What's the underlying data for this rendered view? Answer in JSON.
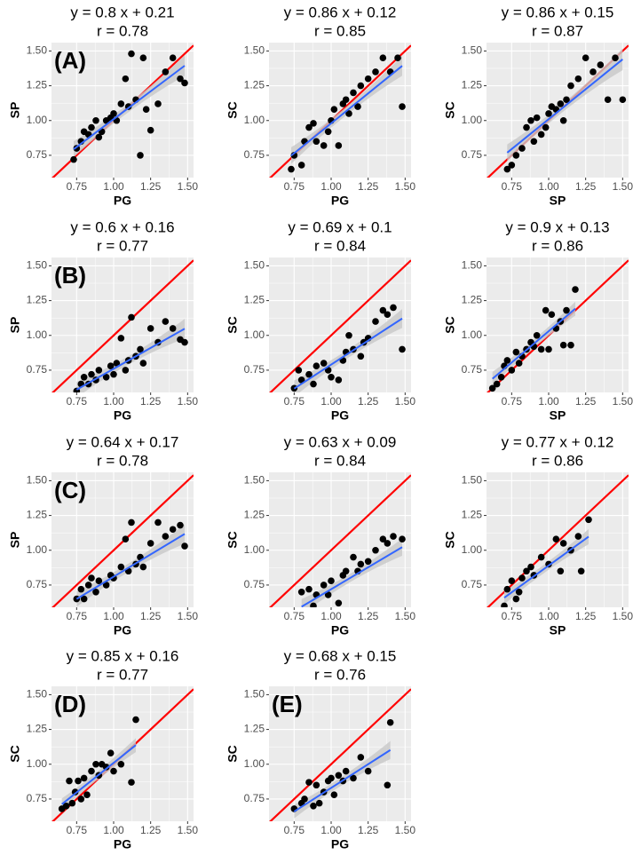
{
  "chart_data": [
    {
      "type": "scatter",
      "title": "y =  0.8 x + 0.21",
      "subtitle": "r = 0.78",
      "label": "(A)",
      "x_label": "PG",
      "y_label": "SP",
      "point_color": "#000000",
      "identity_color": "#ff0000",
      "band_color": "#c8c8c8",
      "fit": {
        "slope": 0.8,
        "intercept": 0.21,
        "color": "#3366ff"
      },
      "xlim": [
        0.58,
        1.54
      ],
      "ylim": [
        0.59,
        1.56
      ],
      "xticks": [
        0.75,
        {
          "value": 1,
          "label": "1.00"
        },
        1.25,
        {
          "value": 1.5,
          "label": "1.50"
        }
      ],
      "yticks": [
        0.75,
        {
          "value": 1,
          "label": "1.00"
        },
        1.25,
        {
          "value": 1.5,
          "label": "1.50"
        }
      ],
      "grid": true,
      "x": [
        0.73,
        0.75,
        0.78,
        0.8,
        0.83,
        0.85,
        0.88,
        0.9,
        0.92,
        0.95,
        0.98,
        1.0,
        1.02,
        1.05,
        1.08,
        1.1,
        1.12,
        1.15,
        1.18,
        1.2,
        1.22,
        1.25,
        1.3,
        1.35,
        1.4,
        1.45,
        1.48
      ],
      "y": [
        0.72,
        0.8,
        0.85,
        0.92,
        0.9,
        0.95,
        1.0,
        0.88,
        0.92,
        1.0,
        1.02,
        1.05,
        1.0,
        1.12,
        1.3,
        1.1,
        1.48,
        1.15,
        0.75,
        1.45,
        1.08,
        0.93,
        1.12,
        1.35,
        1.45,
        1.3,
        1.27
      ]
    },
    {
      "type": "scatter",
      "title": "y =  0.86 x + 0.12",
      "subtitle": "r = 0.85",
      "x_label": "PG",
      "y_label": "SC",
      "point_color": "#000000",
      "identity_color": "#ff0000",
      "band_color": "#c8c8c8",
      "fit": {
        "slope": 0.86,
        "intercept": 0.12,
        "color": "#3366ff"
      },
      "xlim": [
        0.58,
        1.54
      ],
      "ylim": [
        0.59,
        1.56
      ],
      "xticks": [
        0.75,
        {
          "value": 1,
          "label": "1.00"
        },
        1.25,
        {
          "value": 1.5,
          "label": "1.50"
        }
      ],
      "yticks": [
        0.75,
        {
          "value": 1,
          "label": "1.00"
        },
        1.25,
        {
          "value": 1.5,
          "label": "1.50"
        }
      ],
      "grid": true,
      "x": [
        0.73,
        0.75,
        0.8,
        0.82,
        0.85,
        0.88,
        0.9,
        0.95,
        0.98,
        1.0,
        1.02,
        1.05,
        1.08,
        1.1,
        1.12,
        1.15,
        1.18,
        1.2,
        1.25,
        1.3,
        1.35,
        1.4,
        1.45,
        1.48
      ],
      "y": [
        0.65,
        0.75,
        0.68,
        0.85,
        0.95,
        0.98,
        0.85,
        0.82,
        0.92,
        1.0,
        1.08,
        0.82,
        1.12,
        1.15,
        1.05,
        1.2,
        1.1,
        1.25,
        1.3,
        1.35,
        1.45,
        1.35,
        1.45,
        1.1
      ]
    },
    {
      "type": "scatter",
      "title": "y =  0.86 x + 0.15",
      "subtitle": "r = 0.87",
      "x_label": "SP",
      "y_label": "SC",
      "point_color": "#000000",
      "identity_color": "#ff0000",
      "band_color": "#c8c8c8",
      "fit": {
        "slope": 0.86,
        "intercept": 0.15,
        "color": "#3366ff"
      },
      "xlim": [
        0.58,
        1.54
      ],
      "ylim": [
        0.59,
        1.56
      ],
      "xticks": [
        0.75,
        {
          "value": 1,
          "label": "1.00"
        },
        1.25,
        {
          "value": 1.5,
          "label": "1.50"
        }
      ],
      "yticks": [
        0.75,
        {
          "value": 1,
          "label": "1.00"
        },
        1.25,
        {
          "value": 1.5,
          "label": "1.50"
        }
      ],
      "grid": true,
      "x": [
        0.72,
        0.75,
        0.78,
        0.82,
        0.85,
        0.88,
        0.9,
        0.92,
        0.95,
        0.98,
        1.0,
        1.02,
        1.05,
        1.08,
        1.1,
        1.12,
        1.15,
        1.2,
        1.25,
        1.3,
        1.35,
        1.4,
        1.45,
        1.5
      ],
      "y": [
        0.65,
        0.68,
        0.75,
        0.8,
        0.95,
        1.0,
        0.85,
        1.02,
        0.9,
        0.95,
        1.05,
        1.1,
        1.08,
        1.12,
        1.0,
        1.15,
        1.25,
        1.3,
        1.45,
        1.35,
        1.4,
        1.15,
        1.45,
        1.15
      ]
    },
    {
      "type": "scatter",
      "title": "y =  0.6 x + 0.16",
      "subtitle": "r = 0.77",
      "label": "(B)",
      "x_label": "PG",
      "y_label": "SP",
      "point_color": "#000000",
      "identity_color": "#ff0000",
      "band_color": "#c8c8c8",
      "fit": {
        "slope": 0.6,
        "intercept": 0.16,
        "color": "#3366ff"
      },
      "xlim": [
        0.58,
        1.54
      ],
      "ylim": [
        0.59,
        1.56
      ],
      "xticks": [
        0.75,
        {
          "value": 1,
          "label": "1.00"
        },
        1.25,
        {
          "value": 1.5,
          "label": "1.50"
        }
      ],
      "yticks": [
        0.75,
        {
          "value": 1,
          "label": "1.00"
        },
        1.25,
        {
          "value": 1.5,
          "label": "1.50"
        }
      ],
      "grid": true,
      "x": [
        0.75,
        0.78,
        0.8,
        0.83,
        0.85,
        0.88,
        0.9,
        0.95,
        0.98,
        1.0,
        1.02,
        1.05,
        1.08,
        1.1,
        1.12,
        1.15,
        1.18,
        1.2,
        1.25,
        1.3,
        1.35,
        1.4,
        1.45,
        1.48
      ],
      "y": [
        0.6,
        0.65,
        0.7,
        0.65,
        0.72,
        0.68,
        0.75,
        0.7,
        0.78,
        0.72,
        0.8,
        0.98,
        0.75,
        0.82,
        1.13,
        0.85,
        0.9,
        0.8,
        1.05,
        0.95,
        1.1,
        1.05,
        0.97,
        0.95
      ]
    },
    {
      "type": "scatter",
      "title": "y =  0.69 x + 0.1",
      "subtitle": "r = 0.84",
      "x_label": "PG",
      "y_label": "SC",
      "point_color": "#000000",
      "identity_color": "#ff0000",
      "band_color": "#c8c8c8",
      "fit": {
        "slope": 0.69,
        "intercept": 0.1,
        "color": "#3366ff"
      },
      "xlim": [
        0.58,
        1.54
      ],
      "ylim": [
        0.59,
        1.56
      ],
      "xticks": [
        0.75,
        {
          "value": 1,
          "label": "1.00"
        },
        1.25,
        {
          "value": 1.5,
          "label": "1.50"
        }
      ],
      "yticks": [
        0.75,
        {
          "value": 1,
          "label": "1.00"
        },
        1.25,
        {
          "value": 1.5,
          "label": "1.50"
        }
      ],
      "grid": true,
      "x": [
        0.75,
        0.78,
        0.8,
        0.85,
        0.88,
        0.9,
        0.95,
        0.98,
        1.0,
        1.05,
        1.08,
        1.1,
        1.12,
        1.15,
        1.2,
        1.22,
        1.25,
        1.3,
        1.35,
        1.38,
        1.42,
        1.48
      ],
      "y": [
        0.62,
        0.75,
        0.68,
        0.72,
        0.65,
        0.78,
        0.8,
        0.75,
        0.7,
        0.68,
        0.82,
        0.88,
        1.0,
        0.9,
        0.85,
        0.95,
        0.98,
        1.1,
        1.18,
        1.15,
        1.2,
        0.9
      ]
    },
    {
      "type": "scatter",
      "title": "y =  0.9 x + 0.13",
      "subtitle": "r = 0.86",
      "x_label": "SP",
      "y_label": "SC",
      "point_color": "#000000",
      "identity_color": "#ff0000",
      "band_color": "#c8c8c8",
      "fit": {
        "slope": 0.9,
        "intercept": 0.13,
        "color": "#3366ff"
      },
      "xlim": [
        0.58,
        1.54
      ],
      "ylim": [
        0.59,
        1.56
      ],
      "xticks": [
        0.75,
        {
          "value": 1,
          "label": "1.00"
        },
        1.25,
        {
          "value": 1.5,
          "label": "1.50"
        }
      ],
      "yticks": [
        0.75,
        {
          "value": 1,
          "label": "1.00"
        },
        1.25,
        {
          "value": 1.5,
          "label": "1.50"
        }
      ],
      "grid": true,
      "x": [
        0.62,
        0.65,
        0.68,
        0.7,
        0.72,
        0.75,
        0.78,
        0.8,
        0.82,
        0.85,
        0.88,
        0.9,
        0.92,
        0.95,
        0.98,
        1.0,
        1.02,
        1.05,
        1.08,
        1.1,
        1.12,
        1.15,
        1.18
      ],
      "y": [
        0.62,
        0.65,
        0.7,
        0.78,
        0.82,
        0.75,
        0.88,
        0.8,
        0.85,
        0.9,
        0.95,
        0.92,
        1.0,
        0.9,
        1.18,
        0.9,
        1.15,
        1.05,
        1.1,
        0.93,
        1.18,
        0.93,
        1.33
      ]
    },
    {
      "type": "scatter",
      "title": "y =  0.64 x + 0.17",
      "subtitle": "r = 0.78",
      "label": "(C)",
      "x_label": "PG",
      "y_label": "SP",
      "point_color": "#000000",
      "identity_color": "#ff0000",
      "band_color": "#c8c8c8",
      "fit": {
        "slope": 0.64,
        "intercept": 0.17,
        "color": "#3366ff"
      },
      "xlim": [
        0.58,
        1.54
      ],
      "ylim": [
        0.59,
        1.56
      ],
      "xticks": [
        0.75,
        {
          "value": 1,
          "label": "1.00"
        },
        1.25,
        {
          "value": 1.5,
          "label": "1.50"
        }
      ],
      "yticks": [
        0.75,
        {
          "value": 1,
          "label": "1.00"
        },
        1.25,
        {
          "value": 1.5,
          "label": "1.50"
        }
      ],
      "grid": true,
      "x": [
        0.75,
        0.78,
        0.8,
        0.83,
        0.85,
        0.88,
        0.9,
        0.95,
        0.98,
        1.0,
        1.05,
        1.08,
        1.1,
        1.12,
        1.15,
        1.18,
        1.2,
        1.25,
        1.3,
        1.35,
        1.4,
        1.45,
        1.48
      ],
      "y": [
        0.65,
        0.72,
        0.65,
        0.75,
        0.8,
        0.7,
        0.78,
        0.75,
        0.82,
        0.8,
        0.88,
        1.08,
        0.85,
        1.2,
        0.9,
        0.95,
        0.88,
        1.05,
        1.2,
        1.1,
        1.15,
        1.18,
        1.03
      ]
    },
    {
      "type": "scatter",
      "title": "y =  0.63 x + 0.09",
      "subtitle": "r = 0.84",
      "x_label": "PG",
      "y_label": "SC",
      "point_color": "#000000",
      "identity_color": "#ff0000",
      "band_color": "#c8c8c8",
      "fit": {
        "slope": 0.63,
        "intercept": 0.09,
        "color": "#3366ff"
      },
      "xlim": [
        0.58,
        1.54
      ],
      "ylim": [
        0.59,
        1.56
      ],
      "xticks": [
        0.75,
        {
          "value": 1,
          "label": "1.00"
        },
        1.25,
        {
          "value": 1.5,
          "label": "1.50"
        }
      ],
      "yticks": [
        0.75,
        {
          "value": 1,
          "label": "1.00"
        },
        1.25,
        {
          "value": 1.5,
          "label": "1.50"
        }
      ],
      "grid": true,
      "x": [
        0.8,
        0.85,
        0.88,
        0.9,
        0.95,
        0.98,
        1.0,
        1.05,
        1.08,
        1.1,
        1.15,
        1.18,
        1.2,
        1.25,
        1.3,
        1.35,
        1.38,
        1.42,
        1.48
      ],
      "y": [
        0.7,
        0.72,
        0.6,
        0.68,
        0.75,
        0.68,
        0.78,
        0.62,
        0.82,
        0.85,
        0.95,
        0.85,
        0.9,
        0.92,
        1.0,
        1.08,
        1.05,
        1.1,
        1.08
      ]
    },
    {
      "type": "scatter",
      "title": "y =  0.77 x + 0.12",
      "subtitle": "r = 0.86",
      "x_label": "SP",
      "y_label": "SC",
      "point_color": "#000000",
      "identity_color": "#ff0000",
      "band_color": "#c8c8c8",
      "fit": {
        "slope": 0.77,
        "intercept": 0.12,
        "color": "#3366ff"
      },
      "xlim": [
        0.58,
        1.54
      ],
      "ylim": [
        0.59,
        1.56
      ],
      "xticks": [
        0.75,
        {
          "value": 1,
          "label": "1.00"
        },
        1.25,
        {
          "value": 1.5,
          "label": "1.50"
        }
      ],
      "yticks": [
        0.75,
        {
          "value": 1,
          "label": "1.00"
        },
        1.25,
        {
          "value": 1.5,
          "label": "1.50"
        }
      ],
      "grid": true,
      "x": [
        0.7,
        0.72,
        0.75,
        0.78,
        0.8,
        0.82,
        0.85,
        0.88,
        0.9,
        0.95,
        1.0,
        1.05,
        1.08,
        1.1,
        1.15,
        1.2,
        1.22,
        1.27
      ],
      "y": [
        0.6,
        0.72,
        0.78,
        0.65,
        0.7,
        0.8,
        0.85,
        0.88,
        0.82,
        0.95,
        0.9,
        1.08,
        0.85,
        1.05,
        1.0,
        1.1,
        0.85,
        1.22
      ]
    },
    {
      "type": "scatter",
      "title": "y =  0.85 x + 0.16",
      "subtitle": "r = 0.77",
      "label": "(D)",
      "x_label": "PG",
      "y_label": "SC",
      "point_color": "#000000",
      "identity_color": "#ff0000",
      "band_color": "#c8c8c8",
      "fit": {
        "slope": 0.85,
        "intercept": 0.16,
        "color": "#3366ff"
      },
      "xlim": [
        0.58,
        1.54
      ],
      "ylim": [
        0.59,
        1.56
      ],
      "xticks": [
        0.75,
        {
          "value": 1,
          "label": "1.00"
        },
        1.25,
        {
          "value": 1.5,
          "label": "1.50"
        }
      ],
      "yticks": [
        0.75,
        {
          "value": 1,
          "label": "1.00"
        },
        1.25,
        {
          "value": 1.5,
          "label": "1.50"
        }
      ],
      "grid": true,
      "x": [
        0.65,
        0.68,
        0.7,
        0.72,
        0.74,
        0.76,
        0.78,
        0.8,
        0.82,
        0.85,
        0.88,
        0.9,
        0.92,
        0.95,
        0.98,
        1.0,
        1.05,
        1.12,
        1.15
      ],
      "y": [
        0.68,
        0.7,
        0.88,
        0.72,
        0.8,
        0.88,
        0.75,
        0.9,
        0.78,
        0.95,
        1.0,
        0.92,
        1.0,
        0.98,
        1.08,
        0.95,
        1.0,
        0.87,
        1.32
      ]
    },
    {
      "type": "scatter",
      "title": "y =  0.68 x + 0.15",
      "subtitle": "r = 0.76",
      "label": "(E)",
      "x_label": "PG",
      "y_label": "SC",
      "point_color": "#000000",
      "identity_color": "#ff0000",
      "band_color": "#c8c8c8",
      "fit": {
        "slope": 0.68,
        "intercept": 0.15,
        "color": "#3366ff"
      },
      "xlim": [
        0.58,
        1.54
      ],
      "ylim": [
        0.59,
        1.56
      ],
      "xticks": [
        0.75,
        {
          "value": 1,
          "label": "1.00"
        },
        1.25,
        {
          "value": 1.5,
          "label": "1.50"
        }
      ],
      "yticks": [
        0.75,
        {
          "value": 1,
          "label": "1.00"
        },
        1.25,
        {
          "value": 1.5,
          "label": "1.50"
        }
      ],
      "grid": true,
      "x": [
        0.75,
        0.8,
        0.82,
        0.85,
        0.88,
        0.9,
        0.92,
        0.95,
        0.98,
        1.0,
        1.02,
        1.05,
        1.08,
        1.1,
        1.15,
        1.2,
        1.25,
        1.38,
        1.4
      ],
      "y": [
        0.68,
        0.72,
        0.75,
        0.87,
        0.7,
        0.85,
        0.72,
        0.8,
        0.88,
        0.9,
        0.78,
        0.92,
        0.88,
        0.95,
        0.9,
        1.05,
        0.95,
        0.85,
        1.3
      ]
    }
  ]
}
